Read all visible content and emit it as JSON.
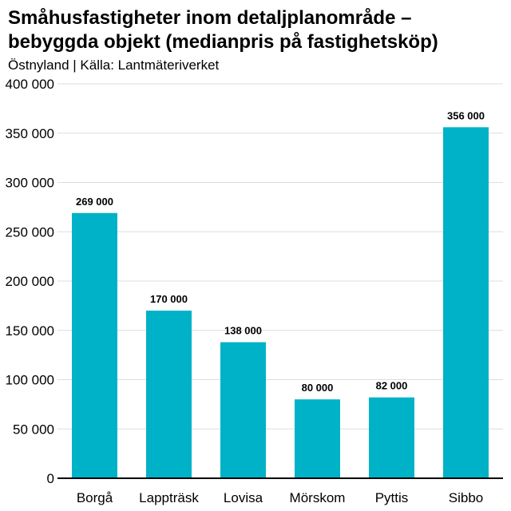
{
  "chart_data": {
    "type": "bar",
    "title": "Småhusfastigheter inom detaljplanområde – bebyggda objekt (medianpris på fastighetsköp)",
    "subtitle": "Östnyland | Källa: Lantmäteriverket",
    "xlabel": "",
    "ylabel": "",
    "categories": [
      "Borgå",
      "Lappträsk",
      "Lovisa",
      "Mörskom",
      "Pyttis",
      "Sibbo"
    ],
    "values": [
      269000,
      170000,
      138000,
      80000,
      82000,
      356000
    ],
    "value_labels": [
      "269 000",
      "170 000",
      "138 000",
      "80 000",
      "82 000",
      "356 000"
    ],
    "ylim": [
      0,
      400000
    ],
    "yticks": [
      0,
      50000,
      100000,
      150000,
      200000,
      250000,
      300000,
      350000,
      400000
    ],
    "ytick_labels": [
      "0",
      "50 000",
      "100 000",
      "150 000",
      "200 000",
      "250 000",
      "300 000",
      "350 000",
      "400 000"
    ],
    "grid": true,
    "legend": "none",
    "colors": {
      "bar": "#00b2c7",
      "grid": "#dddddd",
      "axis": "#000000"
    }
  }
}
